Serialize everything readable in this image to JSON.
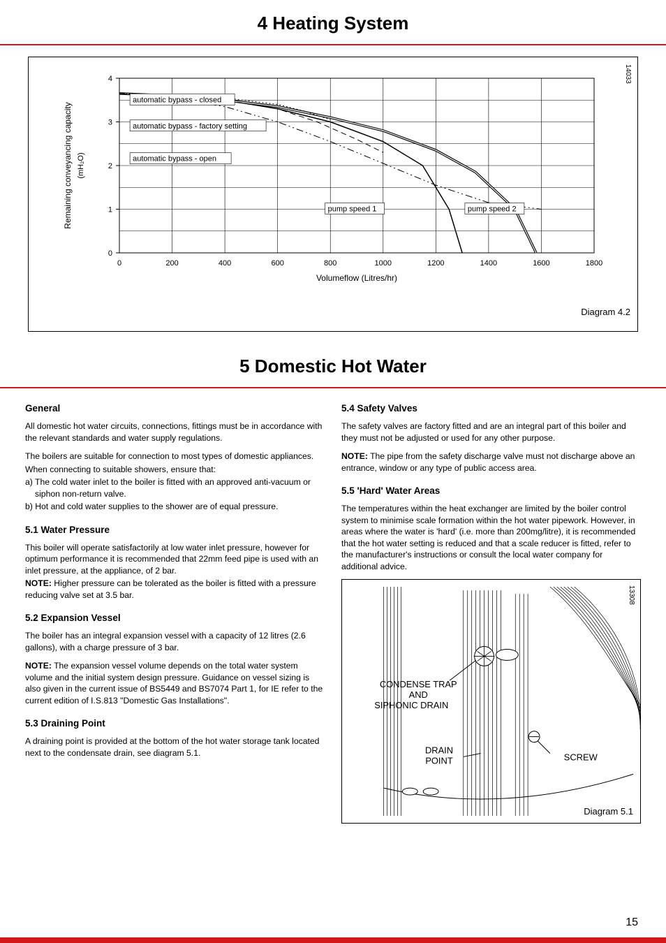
{
  "page": {
    "heading1": "4  Heating System",
    "heading2": "5  Domestic Hot Water",
    "page_number": "15"
  },
  "chart42": {
    "type": "line",
    "id_tag": "14033",
    "caption": "Diagram 4.2",
    "x_label": "Volumeflow (Litres/hr)",
    "y_label": "Remaining conveyancing capacity",
    "y_label_unit": "(mH₂O)",
    "xlim": [
      0,
      1800
    ],
    "ylim": [
      0,
      4
    ],
    "x_ticks": [
      "0",
      "200",
      "400",
      "600",
      "800",
      "1000",
      "1200",
      "1400",
      "1600",
      "1800"
    ],
    "y_ticks": [
      "0",
      "1",
      "2",
      "3",
      "4"
    ],
    "inline_labels": {
      "closed": "automatic bypass - closed",
      "factory": "automatic bypass - factory setting",
      "open": "automatic bypass - open",
      "ps1": "pump speed 1",
      "ps2": "pump speed 2"
    },
    "series": {
      "speed1": {
        "style": "solid",
        "color": "#000000",
        "width": 1.5,
        "points": [
          [
            0,
            3.65
          ],
          [
            200,
            3.6
          ],
          [
            400,
            3.5
          ],
          [
            600,
            3.3
          ],
          [
            800,
            3.0
          ],
          [
            1000,
            2.55
          ],
          [
            1150,
            2.0
          ],
          [
            1250,
            1.0
          ],
          [
            1300,
            0.0
          ]
        ]
      },
      "speed2": {
        "style": "double",
        "color": "#000000",
        "width": 1.5,
        "points": [
          [
            0,
            3.65
          ],
          [
            200,
            3.6
          ],
          [
            400,
            3.5
          ],
          [
            600,
            3.35
          ],
          [
            800,
            3.1
          ],
          [
            1000,
            2.8
          ],
          [
            1200,
            2.35
          ],
          [
            1350,
            1.85
          ],
          [
            1500,
            1.0
          ],
          [
            1580,
            0.0
          ]
        ]
      },
      "open": {
        "style": "dash-dot-dot",
        "color": "#000000",
        "width": 1,
        "points": [
          [
            0,
            3.65
          ],
          [
            200,
            3.55
          ],
          [
            400,
            3.35
          ],
          [
            600,
            3.0
          ],
          [
            800,
            2.55
          ],
          [
            1000,
            2.05
          ],
          [
            1200,
            1.55
          ],
          [
            1400,
            1.15
          ],
          [
            1600,
            1.0
          ]
        ]
      },
      "factory": {
        "style": "dashed",
        "color": "#000000",
        "width": 1,
        "points": [
          [
            0,
            3.65
          ],
          [
            200,
            3.6
          ],
          [
            400,
            3.5
          ],
          [
            600,
            3.3
          ],
          [
            750,
            3.0
          ],
          [
            900,
            2.6
          ],
          [
            1000,
            2.3
          ]
        ]
      },
      "closed": {
        "style": "dotted",
        "color": "#000000",
        "width": 1,
        "points": [
          [
            0,
            3.65
          ],
          [
            200,
            3.6
          ],
          [
            400,
            3.55
          ],
          [
            600,
            3.4
          ],
          [
            700,
            3.25
          ],
          [
            800,
            3.05
          ]
        ]
      }
    },
    "background_color": "#ffffff",
    "grid_color": "#000000",
    "axis_fontsize": 11
  },
  "text": {
    "general_h": "General",
    "general_p1": "All domestic hot water circuits, connections, fittings must be in accordance with the relevant standards and water supply regulations.",
    "general_p2": "The boilers are suitable for connection to most types of domestic appliances.",
    "general_p3": "When connecting to suitable showers, ensure that:",
    "general_a": "a) The cold water inlet to the boiler is fitted with an approved anti-vacuum or siphon non-return valve.",
    "general_b": "b) Hot and cold water supplies to the shower are of equal pressure.",
    "h51": "5.1 Water Pressure",
    "p51a": "This boiler will operate satisfactorily at low water inlet pressure, however for optimum performance it is recommended that 22mm feed pipe is used with an inlet pressure, at the appliance, of 2 bar.",
    "note51_label": "NOTE:",
    "note51": "  Higher pressure can be tolerated as the boiler is fitted with a pressure reducing valve set at 3.5 bar.",
    "h52": "5.2 Expansion Vessel",
    "p52a": "The boiler has an integral expansion vessel with a capacity of 12 litres (2.6 gallons), with a charge pressure of 3 bar.",
    "note52_label": "NOTE:",
    "note52": " The expansion vessel volume depends on the total water system volume and the initial system design pressure. Guidance on vessel sizing is also given in the current issue of BS5449 and BS7074 Part 1, for IE refer to the current edition of I.S.813 \"Domestic Gas Installations\".",
    "h53": "5.3 Draining Point",
    "p53": "A draining point is provided at the bottom of the hot water storage tank located next to the condensate drain, see diagram 5.1.",
    "h54": "5.4 Safety Valves",
    "p54": "The safety valves are factory fitted and are an integral part of this boiler and they must not be adjusted or used for any other purpose.",
    "note54_label": "NOTE:",
    "note54": " The pipe from the safety discharge valve must not discharge above an entrance, window or any type of public access area.",
    "h55": "5.5 'Hard' Water Areas",
    "p55": "The temperatures within the heat exchanger are limited by the boiler control system to minimise scale formation within the hot water pipework.  However, in areas where the water is 'hard' (i.e. more than 200mg/litre), it is recommended that the hot water setting is reduced and that a scale reducer is fitted, refer to the manufacturer's instructions or consult the local water company for additional advice."
  },
  "diagram51": {
    "id_tag": "13308",
    "caption": "Diagram 5.1",
    "labels": {
      "condense": "CONDENSE TRAP",
      "and": "AND",
      "siphonic": "SIPHONIC DRAIN",
      "drain": "DRAIN",
      "point": "POINT",
      "screw": "SCREW"
    },
    "line_color": "#000000",
    "line_width": 1
  },
  "colors": {
    "text": "#000000",
    "accent": "#d31818",
    "background": "#ffffff",
    "grey_label_box": "#ffffff"
  }
}
